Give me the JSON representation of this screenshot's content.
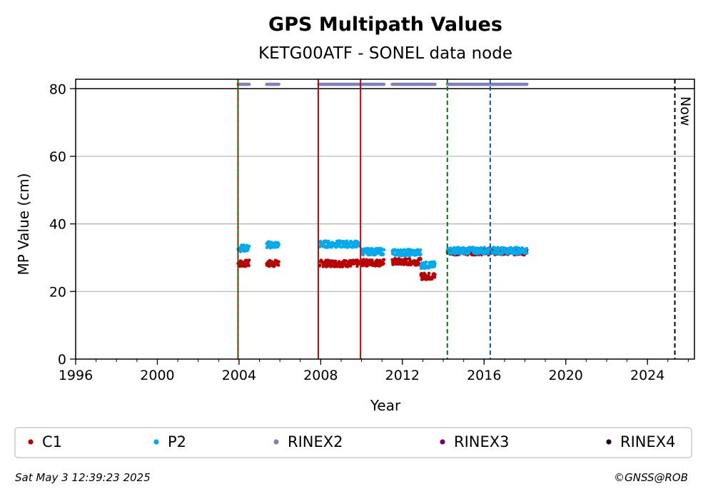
{
  "chart_data": {
    "type": "scatter",
    "title": "GPS Multipath Values",
    "subtitle": "KETG00ATF - SONEL data node",
    "xlabel": "Year",
    "ylabel": "MP Value (cm)",
    "xlim": [
      1996,
      2026.3
    ],
    "ylim": [
      0,
      82.8
    ],
    "x_ticks": [
      {
        "value": 1996,
        "label": "1996"
      },
      {
        "value": 2000,
        "label": "2000"
      },
      {
        "value": 2004,
        "label": "2004"
      },
      {
        "value": 2008,
        "label": "2008"
      },
      {
        "value": 2012,
        "label": "2012"
      },
      {
        "value": 2016,
        "label": "2016"
      },
      {
        "value": 2020,
        "label": "2020"
      },
      {
        "value": 2024,
        "label": "2024"
      }
    ],
    "y_ticks": [
      {
        "value": 0,
        "label": "0"
      },
      {
        "value": 20,
        "label": "20"
      },
      {
        "value": 40,
        "label": "40"
      },
      {
        "value": 60,
        "label": "60"
      },
      {
        "value": 80,
        "label": "80"
      }
    ],
    "grid": "horizontal",
    "reference_line_y": 80,
    "vertical_lines": [
      {
        "x": 2003.95,
        "color": "#cc0000",
        "style": "solid"
      },
      {
        "x": 2003.95,
        "color": "#007700",
        "style": "dashed"
      },
      {
        "x": 2007.88,
        "color": "#cc0000",
        "style": "solid"
      },
      {
        "x": 2009.95,
        "color": "#cc0000",
        "style": "solid"
      },
      {
        "x": 2014.2,
        "color": "#007700",
        "style": "dashed"
      },
      {
        "x": 2016.3,
        "color": "#0055bb",
        "style": "dashed"
      },
      {
        "x": 2025.34,
        "color": "#000000",
        "style": "dashed"
      }
    ],
    "now_label": "Now",
    "series": [
      {
        "name": "C1",
        "color": "#bb0000",
        "segments": [
          {
            "x": [
              2003.95,
              2004.5
            ],
            "y": 28.3
          },
          {
            "x": [
              2005.35,
              2005.95
            ],
            "y": 28.3
          },
          {
            "x": [
              2007.95,
              2009.9
            ],
            "y": 28.3
          },
          {
            "x": [
              2010.0,
              2011.1
            ],
            "y": 28.5
          },
          {
            "x": [
              2011.5,
              2012.9
            ],
            "y": 28.8
          },
          {
            "x": [
              2012.9,
              2013.6
            ],
            "y": 24.5
          },
          {
            "x": [
              2014.2,
              2018.1
            ],
            "y": 31.8
          }
        ]
      },
      {
        "name": "P2",
        "color": "#00aaee",
        "segments": [
          {
            "x": [
              2003.95,
              2004.5
            ],
            "y": 32.8
          },
          {
            "x": [
              2005.35,
              2005.95
            ],
            "y": 33.8
          },
          {
            "x": [
              2007.95,
              2009.9
            ],
            "y": 34.0
          },
          {
            "x": [
              2010.0,
              2011.1
            ],
            "y": 31.8
          },
          {
            "x": [
              2011.5,
              2012.9
            ],
            "y": 31.5
          },
          {
            "x": [
              2012.9,
              2013.6
            ],
            "y": 27.8
          },
          {
            "x": [
              2014.2,
              2018.1
            ],
            "y": 32.1
          }
        ]
      },
      {
        "name": "RINEX2",
        "color": "#8080bb",
        "y": 81.3,
        "segments": [
          {
            "x": [
              2003.95,
              2004.5
            ]
          },
          {
            "x": [
              2005.35,
              2005.95
            ]
          },
          {
            "x": [
              2007.9,
              2009.9
            ]
          },
          {
            "x": [
              2009.95,
              2011.1
            ]
          },
          {
            "x": [
              2011.5,
              2013.6
            ]
          },
          {
            "x": [
              2014.2,
              2018.1
            ]
          }
        ]
      },
      {
        "name": "RINEX3",
        "color": "#770066",
        "segments": []
      },
      {
        "name": "RINEX4",
        "color": "#220022",
        "segments": []
      }
    ],
    "legend_position": "bottom"
  },
  "footer": {
    "timestamp": "Sat May  3 12:39:23 2025",
    "credit": "©GNSS@ROB"
  }
}
